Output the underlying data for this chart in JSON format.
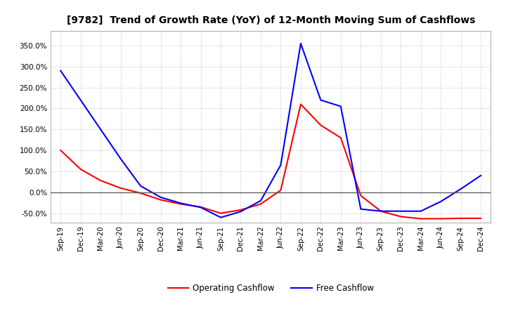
{
  "title": "[9782]  Trend of Growth Rate (YoY) of 12-Month Moving Sum of Cashflows",
  "background_color": "#ffffff",
  "grid_color": "#aaaaaa",
  "operating_color": "#ff0000",
  "free_color": "#0000ff",
  "legend_labels": [
    "Operating Cashflow",
    "Free Cashflow"
  ],
  "x_labels": [
    "Sep-19",
    "Dec-19",
    "Mar-20",
    "Jun-20",
    "Sep-20",
    "Dec-20",
    "Mar-21",
    "Jun-21",
    "Sep-21",
    "Dec-21",
    "Mar-22",
    "Jun-22",
    "Sep-22",
    "Dec-22",
    "Mar-23",
    "Jun-23",
    "Sep-23",
    "Dec-23",
    "Mar-24",
    "Jun-24",
    "Sep-24",
    "Dec-24"
  ],
  "operating_cashflow": [
    1.0,
    0.55,
    0.28,
    0.1,
    -0.02,
    -0.18,
    -0.28,
    -0.35,
    -0.5,
    -0.42,
    -0.28,
    0.05,
    2.1,
    1.6,
    1.3,
    -0.08,
    -0.45,
    -0.58,
    -0.63,
    -0.63,
    -0.62,
    -0.62
  ],
  "free_cashflow": [
    2.9,
    2.2,
    1.5,
    0.8,
    0.15,
    -0.12,
    -0.26,
    -0.36,
    -0.6,
    -0.46,
    -0.2,
    0.65,
    3.55,
    2.2,
    2.05,
    -0.4,
    -0.45,
    -0.45,
    -0.45,
    -0.22,
    0.08,
    0.4
  ],
  "yticks": [
    -0.5,
    0.0,
    0.5,
    1.0,
    1.5,
    2.0,
    2.5,
    3.0,
    3.5
  ],
  "ytick_labels": [
    "-50.0%",
    "0.0%",
    "50.0%",
    "100.0%",
    "150.0%",
    "200.0%",
    "250.0%",
    "300.0%",
    "350.0%"
  ],
  "ylim": [
    -0.72,
    3.85
  ]
}
